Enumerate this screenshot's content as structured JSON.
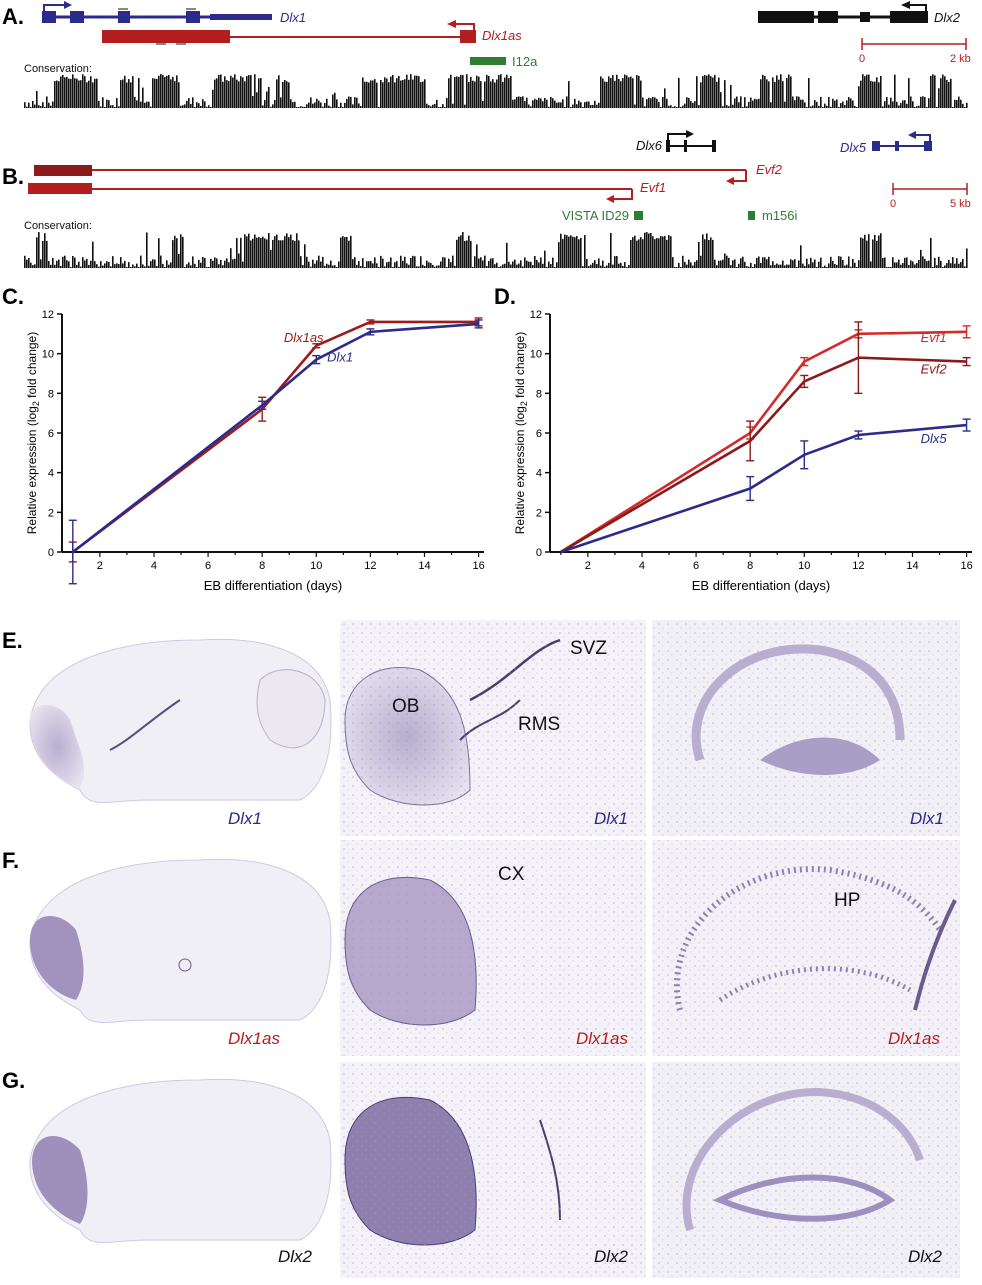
{
  "colors": {
    "blue": "#2b2b8c",
    "red": "#b41e1e",
    "darkred": "#8b1a1a",
    "black": "#111111",
    "green": "#2e7d32",
    "nissl": "#6a5a8e"
  },
  "panel_a": {
    "letter": "A.",
    "dlx1": "Dlx1",
    "dlx1as": "Dlx1as",
    "dlx2": "Dlx2",
    "i12a": "I12a",
    "conservation": "Conservation:",
    "scale_start": "0",
    "scale_end": "2 kb"
  },
  "panel_b": {
    "letter": "B.",
    "dlx6": "Dlx6",
    "dlx5": "Dlx5",
    "evf2": "Evf2",
    "evf1": "Evf1",
    "vista": "VISTA ID29",
    "m156i": "m156i",
    "conservation": "Conservation:",
    "scale_start": "0",
    "scale_end": "5 kb"
  },
  "chart_data": [
    {
      "panel": "C.",
      "type": "line",
      "xlabel": "EB differentiation (days)",
      "ylabel": "Relative expression (log2 fold change)",
      "xticks": [
        2,
        4,
        6,
        8,
        10,
        12,
        14,
        16
      ],
      "yticks": [
        0,
        2,
        4,
        6,
        8,
        10,
        12
      ],
      "xlim": [
        0.6,
        16.2
      ],
      "ylim": [
        0,
        12
      ],
      "series": [
        {
          "name": "Dlx1as",
          "color": "#9c1c1c",
          "x": [
            1,
            8,
            10,
            12,
            16
          ],
          "y": [
            0.0,
            7.2,
            10.4,
            11.6,
            11.6
          ],
          "err": [
            0.5,
            0.6,
            0.1,
            0.1,
            0.2
          ]
        },
        {
          "name": "Dlx1",
          "color": "#2b2b8c",
          "x": [
            1,
            8,
            10,
            12,
            16
          ],
          "y": [
            0.0,
            7.4,
            9.7,
            11.1,
            11.5
          ],
          "err": [
            1.6,
            0.2,
            0.2,
            0.15,
            0.2
          ]
        }
      ]
    },
    {
      "panel": "D.",
      "type": "line",
      "xlabel": "EB differentiation (days)",
      "ylabel": "Relative expression (log2 fold change)",
      "xticks": [
        2,
        4,
        6,
        8,
        10,
        12,
        14,
        16
      ],
      "yticks": [
        0,
        2,
        4,
        6,
        8,
        10,
        12
      ],
      "xlim": [
        0.6,
        16.2
      ],
      "ylim": [
        0,
        12
      ],
      "series": [
        {
          "name": "Evf1",
          "color": "#d42a2a",
          "x": [
            1,
            8,
            10,
            12,
            16
          ],
          "y": [
            0.0,
            6.0,
            9.6,
            11.0,
            11.1
          ],
          "err": [
            0,
            0.3,
            0.2,
            0.2,
            0.3
          ]
        },
        {
          "name": "Evf2",
          "color": "#8b1a1a",
          "x": [
            1,
            8,
            10,
            12,
            16
          ],
          "y": [
            0.0,
            5.6,
            8.6,
            9.8,
            9.6
          ],
          "err": [
            0,
            1.0,
            0.3,
            1.8,
            0.2
          ]
        },
        {
          "name": "Dlx5",
          "color": "#2b2b8c",
          "x": [
            1,
            8,
            10,
            12,
            16
          ],
          "y": [
            0.0,
            3.2,
            4.9,
            5.9,
            6.4
          ],
          "err": [
            0,
            0.6,
            0.7,
            0.2,
            0.3
          ]
        }
      ]
    }
  ],
  "panel_e": {
    "letter": "E.",
    "label1": "Dlx1",
    "label2": "Dlx1",
    "label3": "Dlx1",
    "ob": "OB",
    "rms": "RMS",
    "svz": "SVZ"
  },
  "panel_f": {
    "letter": "F.",
    "label1": "Dlx1as",
    "label2": "Dlx1as",
    "label3": "Dlx1as",
    "cx": "CX",
    "hp": "HP"
  },
  "panel_g": {
    "letter": "G.",
    "label1": "Dlx2",
    "label2": "Dlx2",
    "label3": "Dlx2"
  }
}
